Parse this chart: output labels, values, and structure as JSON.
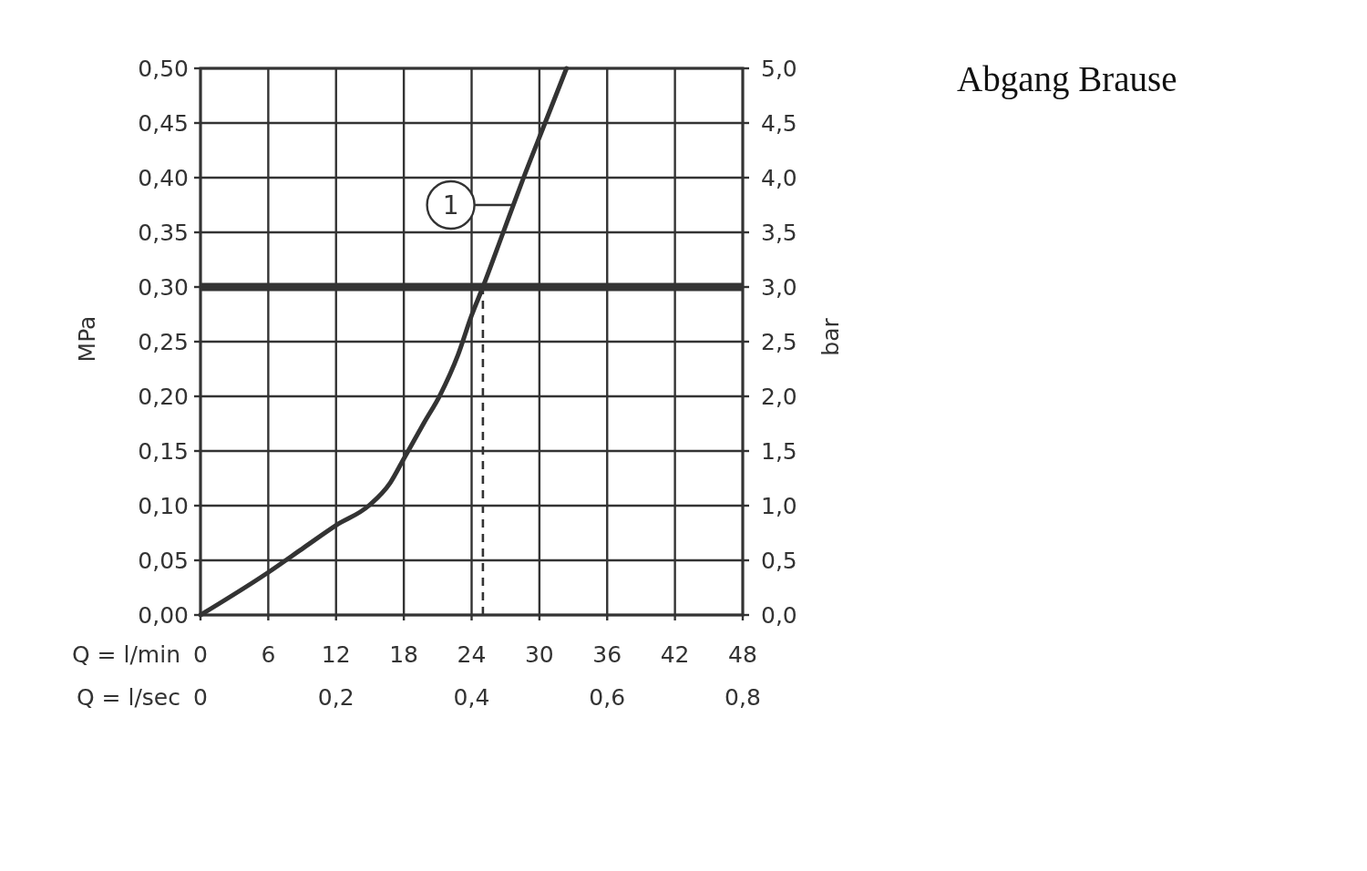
{
  "chart_data": {
    "type": "line",
    "title": "Abgang Brause",
    "xlabel": "Q = l/min",
    "x2label": "Q = l/sec",
    "ylabel": "MPa",
    "y2label": "bar",
    "xlim": [
      0,
      48
    ],
    "xticks": [
      0,
      6,
      12,
      18,
      24,
      30,
      36,
      42,
      48
    ],
    "x2lim": [
      0,
      0.8
    ],
    "x2ticks": [
      0,
      {
        "value": 0.2,
        "label": "0,2"
      },
      {
        "value": 0.4,
        "label": "0,4"
      },
      {
        "value": 0.6,
        "label": "0,6"
      },
      {
        "value": 0.8,
        "label": "0,8"
      }
    ],
    "ylim": [
      0,
      0.5
    ],
    "yticks": [
      {
        "value": 0,
        "label": "0,00"
      },
      {
        "value": 0.05,
        "label": "0,05"
      },
      {
        "value": 0.1,
        "label": "0,10"
      },
      {
        "value": 0.15,
        "label": "0,15"
      },
      {
        "value": 0.2,
        "label": "0,20"
      },
      {
        "value": 0.25,
        "label": "0,25"
      },
      {
        "value": 0.3,
        "label": "0,30"
      },
      {
        "value": 0.35,
        "label": "0,35"
      },
      {
        "value": 0.4,
        "label": "0,40"
      },
      {
        "value": 0.45,
        "label": "0,45"
      },
      {
        "value": 0.5,
        "label": "0,50"
      }
    ],
    "y2lim": [
      0,
      5
    ],
    "y2ticks": [
      {
        "value": 0,
        "label": "0,0"
      },
      {
        "value": 0.5,
        "label": "0,5"
      },
      {
        "value": 1,
        "label": "1,0"
      },
      {
        "value": 1.5,
        "label": "1,5"
      },
      {
        "value": 2,
        "label": "2,0"
      },
      {
        "value": 2.5,
        "label": "2,5"
      },
      {
        "value": 3,
        "label": "3,0"
      },
      {
        "value": 3.5,
        "label": "3,5"
      },
      {
        "value": 4,
        "label": "4,0"
      },
      {
        "value": 4.5,
        "label": "4,5"
      },
      {
        "value": 5,
        "label": "5,0"
      }
    ],
    "grid": true,
    "series": [
      {
        "color": "#333333",
        "x": [
          0,
          6,
          9.2,
          12,
          14.9,
          16.8,
          18,
          19.8,
          21.2,
          22.8,
          24,
          25,
          26.8,
          28.6,
          30.5,
          32.4
        ],
        "values": [
          0,
          0.039,
          0.062,
          0.082,
          0.1,
          0.121,
          0.143,
          0.176,
          0.201,
          0.238,
          0.274,
          0.3,
          0.35,
          0.4,
          0.45,
          0.5
        ]
      },
      {
        "color": "#333333",
        "line_style": "dashed",
        "x": [
          25,
          25
        ],
        "values": [
          0,
          0.3
        ]
      }
    ],
    "ref_lines": [
      {
        "axis": "y",
        "value": 0.3,
        "color": "#333333"
      }
    ],
    "annotations": [
      {
        "text": "1",
        "x": 27.8,
        "y": 0.375
      }
    ]
  }
}
